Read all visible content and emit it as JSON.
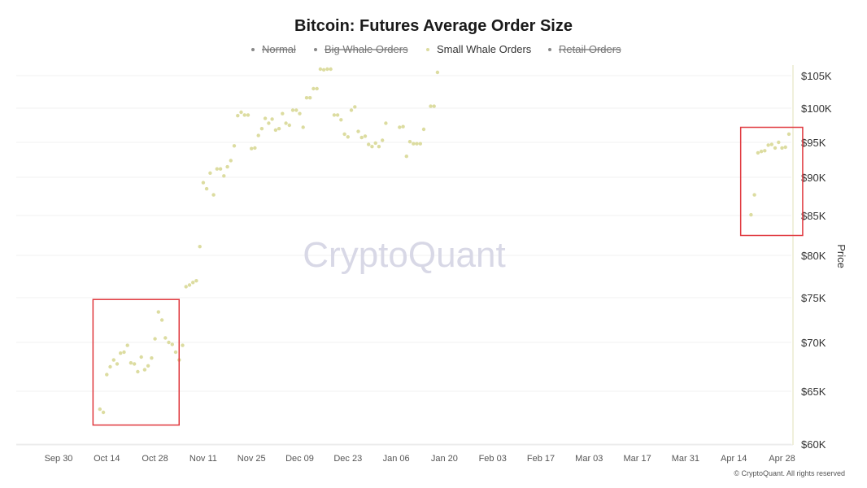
{
  "chart_data": {
    "type": "scatter",
    "title": "Bitcoin: Futures Average Order Size",
    "legend": [
      {
        "label": "Normal",
        "enabled": false,
        "color": "#888888"
      },
      {
        "label": "Big Whale Orders",
        "enabled": false,
        "color": "#888888"
      },
      {
        "label": "Small Whale Orders",
        "enabled": true,
        "color": "#dcdca0"
      },
      {
        "label": "Retail Orders",
        "enabled": false,
        "color": "#888888"
      }
    ],
    "legend_position": "top-center",
    "ylabel": "Price",
    "y_axis_side": "right",
    "y_ticks": [
      {
        "value": 60000,
        "label": "$60K"
      },
      {
        "value": 65000,
        "label": "$65K"
      },
      {
        "value": 70000,
        "label": "$70K"
      },
      {
        "value": 75000,
        "label": "$75K"
      },
      {
        "value": 80000,
        "label": "$80K"
      },
      {
        "value": 85000,
        "label": "$85K"
      },
      {
        "value": 90000,
        "label": "$90K"
      },
      {
        "value": 95000,
        "label": "$95K"
      },
      {
        "value": 100000,
        "label": "$100K"
      },
      {
        "value": 105000,
        "label": "$105K"
      }
    ],
    "x_ticks": [
      {
        "date": "2024-09-30",
        "label": "Sep 30"
      },
      {
        "date": "2024-10-14",
        "label": "Oct 14"
      },
      {
        "date": "2024-10-28",
        "label": "Oct 28"
      },
      {
        "date": "2024-11-11",
        "label": "Nov 11"
      },
      {
        "date": "2024-11-25",
        "label": "Nov 25"
      },
      {
        "date": "2024-12-09",
        "label": "Dec 09"
      },
      {
        "date": "2024-12-23",
        "label": "Dec 23"
      },
      {
        "date": "2025-01-06",
        "label": "Jan 06"
      },
      {
        "date": "2025-01-20",
        "label": "Jan 20"
      },
      {
        "date": "2025-02-03",
        "label": "Feb 03"
      },
      {
        "date": "2025-02-17",
        "label": "Feb 17"
      },
      {
        "date": "2025-03-03",
        "label": "Mar 03"
      },
      {
        "date": "2025-03-17",
        "label": "Mar 17"
      },
      {
        "date": "2025-03-31",
        "label": "Mar 31"
      },
      {
        "date": "2025-04-14",
        "label": "Apr 14"
      },
      {
        "date": "2025-04-28",
        "label": "Apr 28"
      }
    ],
    "grid": "horizontal",
    "series": [
      {
        "name": "Small Whale Orders",
        "color": "#dcdca0",
        "points": [
          {
            "x": "2024-10-12",
            "y": 63300
          },
          {
            "x": "2024-10-13",
            "y": 63000
          },
          {
            "x": "2024-10-14",
            "y": 66700
          },
          {
            "x": "2024-10-15",
            "y": 67500
          },
          {
            "x": "2024-10-16",
            "y": 68200
          },
          {
            "x": "2024-10-17",
            "y": 67800
          },
          {
            "x": "2024-10-18",
            "y": 68900
          },
          {
            "x": "2024-10-19",
            "y": 69000
          },
          {
            "x": "2024-10-20",
            "y": 69700
          },
          {
            "x": "2024-10-21",
            "y": 67900
          },
          {
            "x": "2024-10-22",
            "y": 67800
          },
          {
            "x": "2024-10-23",
            "y": 67000
          },
          {
            "x": "2024-10-24",
            "y": 68500
          },
          {
            "x": "2024-10-25",
            "y": 67200
          },
          {
            "x": "2024-10-26",
            "y": 67600
          },
          {
            "x": "2024-10-27",
            "y": 68400
          },
          {
            "x": "2024-10-28",
            "y": 70400
          },
          {
            "x": "2024-10-29",
            "y": 73400
          },
          {
            "x": "2024-10-30",
            "y": 72500
          },
          {
            "x": "2024-10-31",
            "y": 70500
          },
          {
            "x": "2024-11-01",
            "y": 70000
          },
          {
            "x": "2024-11-02",
            "y": 69800
          },
          {
            "x": "2024-11-03",
            "y": 69000
          },
          {
            "x": "2024-11-04",
            "y": 68200
          },
          {
            "x": "2024-11-05",
            "y": 69700
          },
          {
            "x": "2024-11-06",
            "y": 76300
          },
          {
            "x": "2024-11-07",
            "y": 76500
          },
          {
            "x": "2024-11-08",
            "y": 76800
          },
          {
            "x": "2024-11-09",
            "y": 77000
          },
          {
            "x": "2024-11-10",
            "y": 81100
          },
          {
            "x": "2024-11-11",
            "y": 89300
          },
          {
            "x": "2024-11-12",
            "y": 88500
          },
          {
            "x": "2024-11-13",
            "y": 90600
          },
          {
            "x": "2024-11-14",
            "y": 87700
          },
          {
            "x": "2024-11-15",
            "y": 91200
          },
          {
            "x": "2024-11-16",
            "y": 91200
          },
          {
            "x": "2024-11-17",
            "y": 90200
          },
          {
            "x": "2024-11-18",
            "y": 91500
          },
          {
            "x": "2024-11-19",
            "y": 92400
          },
          {
            "x": "2024-11-20",
            "y": 94500
          },
          {
            "x": "2024-11-21",
            "y": 98900
          },
          {
            "x": "2024-11-22",
            "y": 99400
          },
          {
            "x": "2024-11-23",
            "y": 99000
          },
          {
            "x": "2024-11-24",
            "y": 99000
          },
          {
            "x": "2024-11-25",
            "y": 94100
          },
          {
            "x": "2024-11-26",
            "y": 94200
          },
          {
            "x": "2024-11-27",
            "y": 96000
          },
          {
            "x": "2024-11-28",
            "y": 97000
          },
          {
            "x": "2024-11-29",
            "y": 98500
          },
          {
            "x": "2024-11-30",
            "y": 97800
          },
          {
            "x": "2024-12-01",
            "y": 98400
          },
          {
            "x": "2024-12-02",
            "y": 96800
          },
          {
            "x": "2024-12-03",
            "y": 97000
          },
          {
            "x": "2024-12-04",
            "y": 99200
          },
          {
            "x": "2024-12-05",
            "y": 97800
          },
          {
            "x": "2024-12-06",
            "y": 97500
          },
          {
            "x": "2024-12-07",
            "y": 99700
          },
          {
            "x": "2024-12-08",
            "y": 99700
          },
          {
            "x": "2024-12-09",
            "y": 99200
          },
          {
            "x": "2024-12-10",
            "y": 97200
          },
          {
            "x": "2024-12-11",
            "y": 101600
          },
          {
            "x": "2024-12-12",
            "y": 101600
          },
          {
            "x": "2024-12-13",
            "y": 103000
          },
          {
            "x": "2024-12-14",
            "y": 103000
          },
          {
            "x": "2024-12-15",
            "y": 106000
          },
          {
            "x": "2024-12-16",
            "y": 105900
          },
          {
            "x": "2024-12-17",
            "y": 106000
          },
          {
            "x": "2024-12-18",
            "y": 106000
          },
          {
            "x": "2024-12-19",
            "y": 99000
          },
          {
            "x": "2024-12-20",
            "y": 99000
          },
          {
            "x": "2024-12-21",
            "y": 98300
          },
          {
            "x": "2024-12-22",
            "y": 96200
          },
          {
            "x": "2024-12-23",
            "y": 95800
          },
          {
            "x": "2024-12-24",
            "y": 99700
          },
          {
            "x": "2024-12-25",
            "y": 100200
          },
          {
            "x": "2024-12-26",
            "y": 96600
          },
          {
            "x": "2024-12-27",
            "y": 95700
          },
          {
            "x": "2024-12-28",
            "y": 95900
          },
          {
            "x": "2024-12-29",
            "y": 94700
          },
          {
            "x": "2024-12-30",
            "y": 94400
          },
          {
            "x": "2024-12-31",
            "y": 94900
          },
          {
            "x": "2025-01-01",
            "y": 94400
          },
          {
            "x": "2025-01-02",
            "y": 95300
          },
          {
            "x": "2025-01-03",
            "y": 97800
          },
          {
            "x": "2025-01-07",
            "y": 97200
          },
          {
            "x": "2025-01-08",
            "y": 97300
          },
          {
            "x": "2025-01-09",
            "y": 93000
          },
          {
            "x": "2025-01-10",
            "y": 95100
          },
          {
            "x": "2025-01-11",
            "y": 94800
          },
          {
            "x": "2025-01-12",
            "y": 94800
          },
          {
            "x": "2025-01-13",
            "y": 94800
          },
          {
            "x": "2025-01-14",
            "y": 96900
          },
          {
            "x": "2025-01-16",
            "y": 100300
          },
          {
            "x": "2025-01-17",
            "y": 100300
          },
          {
            "x": "2025-01-18",
            "y": 105500
          },
          {
            "x": "2025-04-19",
            "y": 85100
          },
          {
            "x": "2025-04-20",
            "y": 87700
          },
          {
            "x": "2025-04-21",
            "y": 93500
          },
          {
            "x": "2025-04-22",
            "y": 93700
          },
          {
            "x": "2025-04-23",
            "y": 93800
          },
          {
            "x": "2025-04-24",
            "y": 94600
          },
          {
            "x": "2025-04-25",
            "y": 94700
          },
          {
            "x": "2025-04-26",
            "y": 94200
          },
          {
            "x": "2025-04-27",
            "y": 95000
          },
          {
            "x": "2025-04-28",
            "y": 94200
          },
          {
            "x": "2025-04-29",
            "y": 94300
          },
          {
            "x": "2025-04-30",
            "y": 96200
          }
        ]
      }
    ],
    "highlights": [
      {
        "label": "",
        "x_range": [
          "2024-10-10",
          "2024-11-04"
        ],
        "y_range": [
          61800,
          74800
        ],
        "color": "#e0383e"
      },
      {
        "label": "",
        "x_range": [
          "2025-04-16",
          "2025-05-04"
        ],
        "y_range": [
          82500,
          97200
        ],
        "color": "#e0383e"
      }
    ]
  },
  "watermark": "CryptoQuant",
  "copyright": "© CryptoQuant. All rights reserved"
}
